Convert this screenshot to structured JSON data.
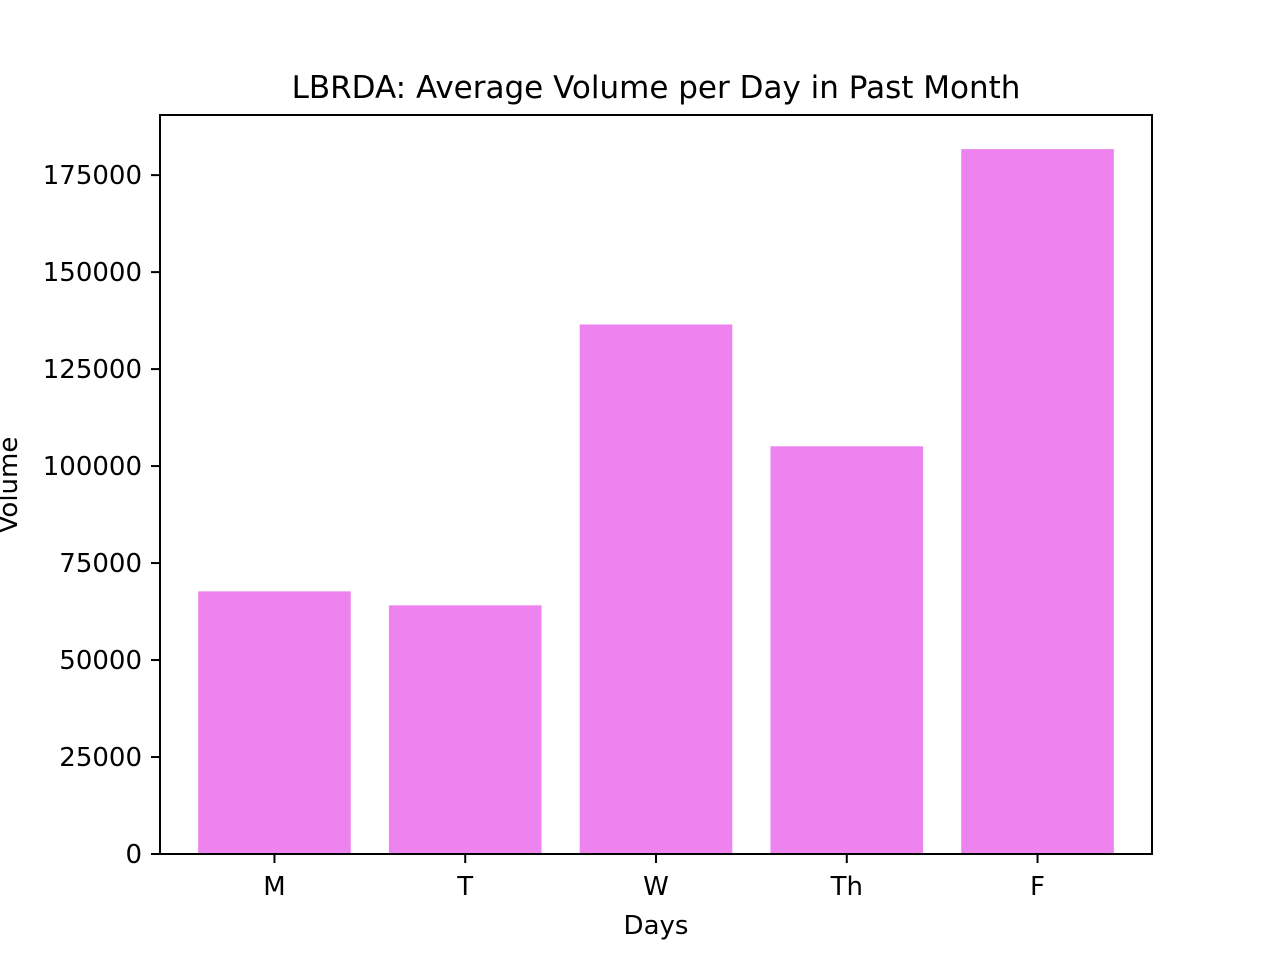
{
  "chart_data": {
    "type": "bar",
    "title": "LBRDA: Average Volume per Day in Past Month",
    "xlabel": "Days",
    "ylabel": "Volume",
    "categories": [
      "M",
      "T",
      "W",
      "Th",
      "F"
    ],
    "values": [
      67700,
      64100,
      136500,
      105100,
      181700
    ],
    "ylim": [
      0,
      190500
    ],
    "yticks": [
      0,
      25000,
      50000,
      75000,
      100000,
      125000,
      150000,
      175000
    ],
    "bar_color": "#ee82ee",
    "grid": false,
    "legend": false
  }
}
